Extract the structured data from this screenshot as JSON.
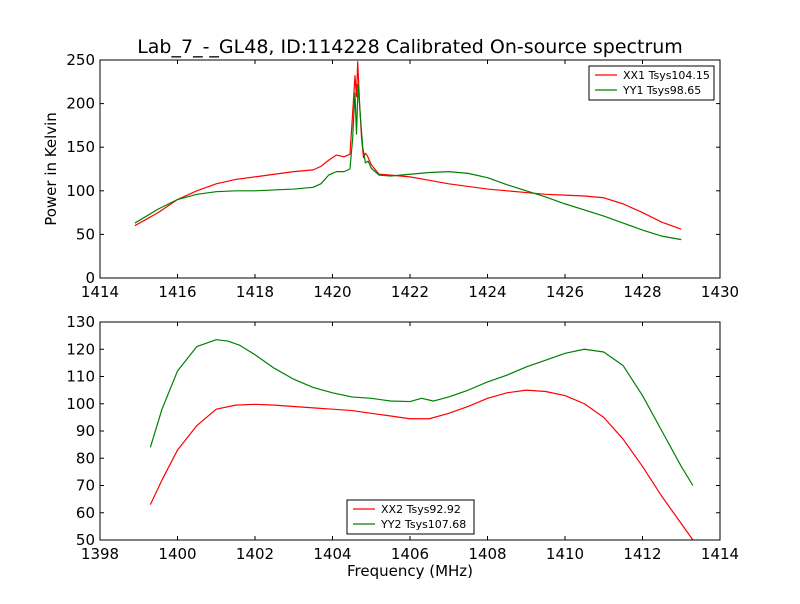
{
  "title": "Lab_7_-_GL48, ID:114228 Calibrated On-source spectrum",
  "xlabel_bottom": "Frequency (MHz)",
  "ylabel_top": "Power in Kelvin",
  "colors": {
    "xx": "#ff0000",
    "yy": "#008000"
  },
  "chart_data": [
    {
      "type": "line",
      "title": "Lab_7_-_GL48, ID:114228 Calibrated On-source spectrum",
      "xlabel": "",
      "ylabel": "Power in Kelvin",
      "xlim": [
        1414,
        1430
      ],
      "ylim": [
        0,
        250
      ],
      "xticks": [
        1414,
        1416,
        1418,
        1420,
        1422,
        1424,
        1426,
        1428,
        1430
      ],
      "yticks": [
        0,
        50,
        100,
        150,
        200,
        250
      ],
      "legend_position": "top-right",
      "grid": false,
      "series": [
        {
          "name": "XX1 Tsys104.15",
          "color": "#ff0000",
          "x": [
            1414.9,
            1415.5,
            1416,
            1416.5,
            1417,
            1417.5,
            1418,
            1418.5,
            1419,
            1419.5,
            1419.7,
            1419.9,
            1420.1,
            1420.3,
            1420.45,
            1420.5,
            1420.58,
            1420.62,
            1420.65,
            1420.7,
            1420.75,
            1420.8,
            1420.85,
            1420.9,
            1421,
            1421.2,
            1421.5,
            1422,
            1422.5,
            1423,
            1423.5,
            1424,
            1424.5,
            1425,
            1425.5,
            1426,
            1426.5,
            1427,
            1427.5,
            1428,
            1428.5,
            1429
          ],
          "y": [
            60,
            75,
            90,
            100,
            108,
            113,
            116,
            119,
            122,
            124,
            128,
            135,
            141,
            139,
            142,
            175,
            232,
            208,
            248,
            200,
            160,
            138,
            143,
            140,
            130,
            119,
            118,
            116,
            112,
            108,
            105,
            102,
            100,
            98,
            96,
            95,
            94,
            92,
            85,
            75,
            64,
            56
          ]
        },
        {
          "name": "YY1 Tsys98.65",
          "color": "#008000",
          "x": [
            1414.9,
            1415.5,
            1416,
            1416.5,
            1417,
            1417.5,
            1418,
            1418.5,
            1419,
            1419.5,
            1419.7,
            1419.9,
            1420.1,
            1420.3,
            1420.45,
            1420.52,
            1420.58,
            1420.62,
            1420.66,
            1420.72,
            1420.78,
            1420.85,
            1420.92,
            1421,
            1421.2,
            1421.5,
            1422,
            1422.5,
            1423,
            1423.5,
            1424,
            1424.5,
            1425,
            1425.5,
            1426,
            1426.5,
            1427,
            1427.5,
            1428,
            1428.5,
            1429
          ],
          "y": [
            63,
            79,
            90,
            96,
            99,
            100,
            100,
            101,
            102,
            104,
            108,
            118,
            122,
            122,
            125,
            160,
            212,
            165,
            222,
            185,
            150,
            132,
            134,
            126,
            118,
            117,
            119,
            121,
            122,
            120,
            115,
            107,
            100,
            93,
            85,
            78,
            71,
            63,
            55,
            48,
            44
          ]
        }
      ]
    },
    {
      "type": "line",
      "title": "",
      "xlabel": "Frequency (MHz)",
      "ylabel": "",
      "xlim": [
        1398,
        1414
      ],
      "ylim": [
        50,
        130
      ],
      "xticks": [
        1398,
        1400,
        1402,
        1404,
        1406,
        1408,
        1410,
        1412,
        1414
      ],
      "yticks": [
        50,
        60,
        70,
        80,
        90,
        100,
        110,
        120,
        130
      ],
      "legend_position": "lower-center",
      "grid": false,
      "series": [
        {
          "name": "XX2 Tsys92.92",
          "color": "#ff0000",
          "x": [
            1399.3,
            1399.6,
            1400,
            1400.5,
            1401,
            1401.5,
            1402,
            1402.5,
            1403,
            1403.5,
            1404,
            1404.5,
            1405,
            1405.5,
            1406,
            1406.5,
            1407,
            1407.5,
            1408,
            1408.5,
            1409,
            1409.5,
            1410,
            1410.5,
            1411,
            1411.5,
            1412,
            1412.5,
            1413,
            1413.3
          ],
          "y": [
            63,
            72,
            83,
            92,
            98,
            99.5,
            99.8,
            99.5,
            99,
            98.5,
            98,
            97.5,
            96.5,
            95.5,
            94.5,
            94.5,
            96.5,
            99,
            102,
            104,
            105,
            104.5,
            103,
            100,
            95,
            87,
            77,
            66,
            56,
            50
          ]
        },
        {
          "name": "YY2 Tsys107.68",
          "color": "#008000",
          "x": [
            1399.3,
            1399.6,
            1400,
            1400.5,
            1401,
            1401.3,
            1401.6,
            1402,
            1402.5,
            1403,
            1403.5,
            1404,
            1404.5,
            1405,
            1405.5,
            1406,
            1406.3,
            1406.6,
            1407,
            1407.5,
            1408,
            1408.5,
            1409,
            1409.5,
            1410,
            1410.5,
            1411,
            1411.5,
            1412,
            1412.5,
            1413,
            1413.3
          ],
          "y": [
            84,
            98,
            112,
            121,
            123.5,
            123,
            121.5,
            118,
            113,
            109,
            106,
            104,
            102.5,
            102,
            101,
            100.8,
            102,
            101,
            102.5,
            105,
            108,
            110.5,
            113.5,
            116,
            118.5,
            120,
            119,
            114,
            103,
            90,
            77,
            70
          ]
        }
      ]
    }
  ]
}
